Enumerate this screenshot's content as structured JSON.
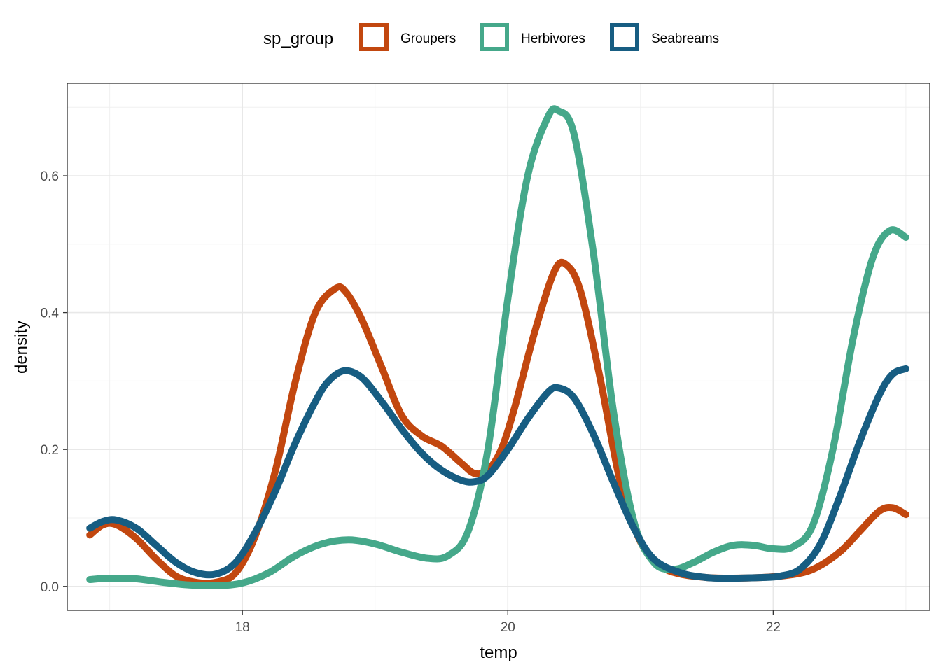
{
  "chart_data": {
    "type": "line",
    "xlabel": "temp",
    "ylabel": "density",
    "xlim": [
      16.68,
      23.18
    ],
    "ylim": [
      -0.035,
      0.735
    ],
    "x_ticks": [
      18,
      20,
      22
    ],
    "x_minor": [
      17,
      19,
      21,
      23
    ],
    "y_ticks": [
      0.0,
      0.2,
      0.4,
      0.6
    ],
    "y_tick_labels": [
      "0.0",
      "0.2",
      "0.4",
      "0.6"
    ],
    "y_minor": [
      0.1,
      0.3,
      0.5,
      0.7
    ],
    "grid": true,
    "legend": {
      "title": "sp_group",
      "position": "top"
    },
    "series": [
      {
        "name": "Groupers",
        "color": "#C2470F",
        "x": [
          16.85,
          16.95,
          17.05,
          17.2,
          17.35,
          17.5,
          17.65,
          17.8,
          17.95,
          18.1,
          18.25,
          18.4,
          18.55,
          18.7,
          18.78,
          18.9,
          19.05,
          19.2,
          19.35,
          19.5,
          19.65,
          19.75,
          19.85,
          19.95,
          20.05,
          20.2,
          20.35,
          20.44,
          20.55,
          20.7,
          20.85,
          21.0,
          21.15,
          21.3,
          21.5,
          21.7,
          21.9,
          22.1,
          22.3,
          22.5,
          22.65,
          22.8,
          22.9,
          23.0
        ],
        "y": [
          0.075,
          0.09,
          0.09,
          0.07,
          0.04,
          0.015,
          0.006,
          0.006,
          0.02,
          0.075,
          0.17,
          0.3,
          0.4,
          0.435,
          0.43,
          0.39,
          0.32,
          0.25,
          0.22,
          0.205,
          0.18,
          0.165,
          0.17,
          0.2,
          0.26,
          0.37,
          0.46,
          0.47,
          0.43,
          0.3,
          0.15,
          0.065,
          0.03,
          0.018,
          0.013,
          0.012,
          0.013,
          0.016,
          0.025,
          0.05,
          0.08,
          0.11,
          0.115,
          0.105
        ]
      },
      {
        "name": "Herbivores",
        "color": "#45A88A",
        "x": [
          16.85,
          17.0,
          17.2,
          17.4,
          17.6,
          17.8,
          18.0,
          18.2,
          18.4,
          18.6,
          18.8,
          19.0,
          19.2,
          19.4,
          19.55,
          19.7,
          19.85,
          20.0,
          20.15,
          20.3,
          20.38,
          20.5,
          20.65,
          20.8,
          20.95,
          21.1,
          21.25,
          21.4,
          21.55,
          21.7,
          21.85,
          22.0,
          22.15,
          22.3,
          22.45,
          22.6,
          22.75,
          22.88,
          23.0
        ],
        "y": [
          0.01,
          0.012,
          0.011,
          0.006,
          0.002,
          0.001,
          0.005,
          0.02,
          0.045,
          0.062,
          0.068,
          0.062,
          0.05,
          0.041,
          0.045,
          0.08,
          0.2,
          0.42,
          0.6,
          0.685,
          0.695,
          0.66,
          0.48,
          0.25,
          0.095,
          0.035,
          0.025,
          0.035,
          0.05,
          0.06,
          0.06,
          0.055,
          0.058,
          0.09,
          0.2,
          0.36,
          0.48,
          0.52,
          0.51
        ]
      },
      {
        "name": "Seabreams",
        "color": "#175D82",
        "x": [
          16.85,
          16.95,
          17.05,
          17.2,
          17.35,
          17.5,
          17.65,
          17.8,
          17.95,
          18.1,
          18.25,
          18.4,
          18.55,
          18.65,
          18.77,
          18.9,
          19.05,
          19.2,
          19.35,
          19.5,
          19.65,
          19.75,
          19.85,
          20.0,
          20.15,
          20.3,
          20.38,
          20.5,
          20.65,
          20.8,
          20.95,
          21.1,
          21.3,
          21.5,
          21.7,
          21.9,
          22.05,
          22.2,
          22.35,
          22.5,
          22.65,
          22.8,
          22.9,
          23.0
        ],
        "y": [
          0.085,
          0.095,
          0.097,
          0.085,
          0.06,
          0.035,
          0.02,
          0.018,
          0.035,
          0.08,
          0.14,
          0.21,
          0.27,
          0.3,
          0.315,
          0.305,
          0.27,
          0.23,
          0.195,
          0.17,
          0.155,
          0.153,
          0.162,
          0.2,
          0.245,
          0.283,
          0.29,
          0.275,
          0.22,
          0.15,
          0.085,
          0.04,
          0.02,
          0.013,
          0.012,
          0.013,
          0.015,
          0.025,
          0.06,
          0.13,
          0.21,
          0.28,
          0.31,
          0.318
        ]
      }
    ]
  }
}
